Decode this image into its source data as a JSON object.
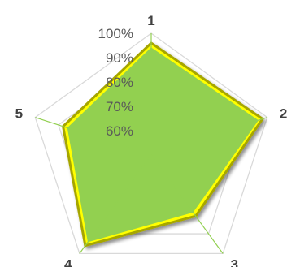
{
  "chart_data": {
    "type": "radar",
    "categories": [
      "1",
      "2",
      "3",
      "4",
      "5"
    ],
    "series": [
      {
        "values": [
          96,
          98,
          81,
          96,
          88
        ],
        "color": "#FFFF00",
        "outline": "#A6A600"
      },
      {
        "values": [
          94,
          96,
          79,
          94,
          86
        ],
        "color": "#92D050",
        "outline": "#92D050"
      }
    ],
    "radial_ticks": [
      "60%",
      "70%",
      "80%",
      "90%",
      "100%"
    ],
    "rlim": [
      50,
      100
    ],
    "grid": true,
    "grid_color": "#D9D9D9",
    "axis_color": "#92D050",
    "legend": "none"
  }
}
